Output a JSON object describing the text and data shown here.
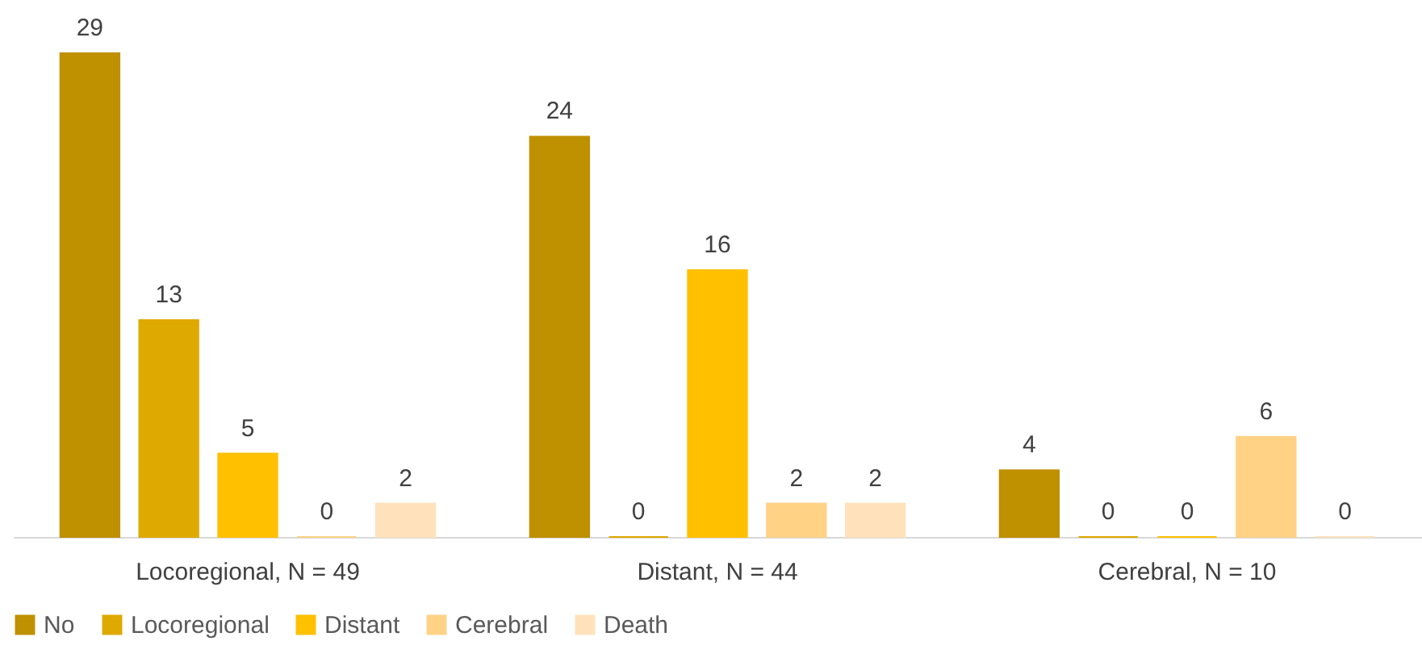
{
  "chart_data": {
    "type": "bar",
    "categories": [
      "Locoregional, N = 49",
      "Distant, N = 44",
      "Cerebral, N = 10"
    ],
    "series": [
      {
        "name": "No",
        "color": "#bf9000",
        "values": [
          29,
          24,
          4
        ]
      },
      {
        "name": "Locoregional",
        "color": "#dea900",
        "values": [
          13,
          0,
          0
        ]
      },
      {
        "name": "Distant",
        "color": "#ffc000",
        "values": [
          5,
          16,
          0
        ]
      },
      {
        "name": "Cerebral",
        "color": "#ffd285",
        "values": [
          0,
          2,
          6
        ]
      },
      {
        "name": "Death",
        "color": "#ffe2bb",
        "values": [
          2,
          2,
          0
        ]
      }
    ],
    "data_labels": true,
    "legend": "bottom",
    "grid": false
  }
}
